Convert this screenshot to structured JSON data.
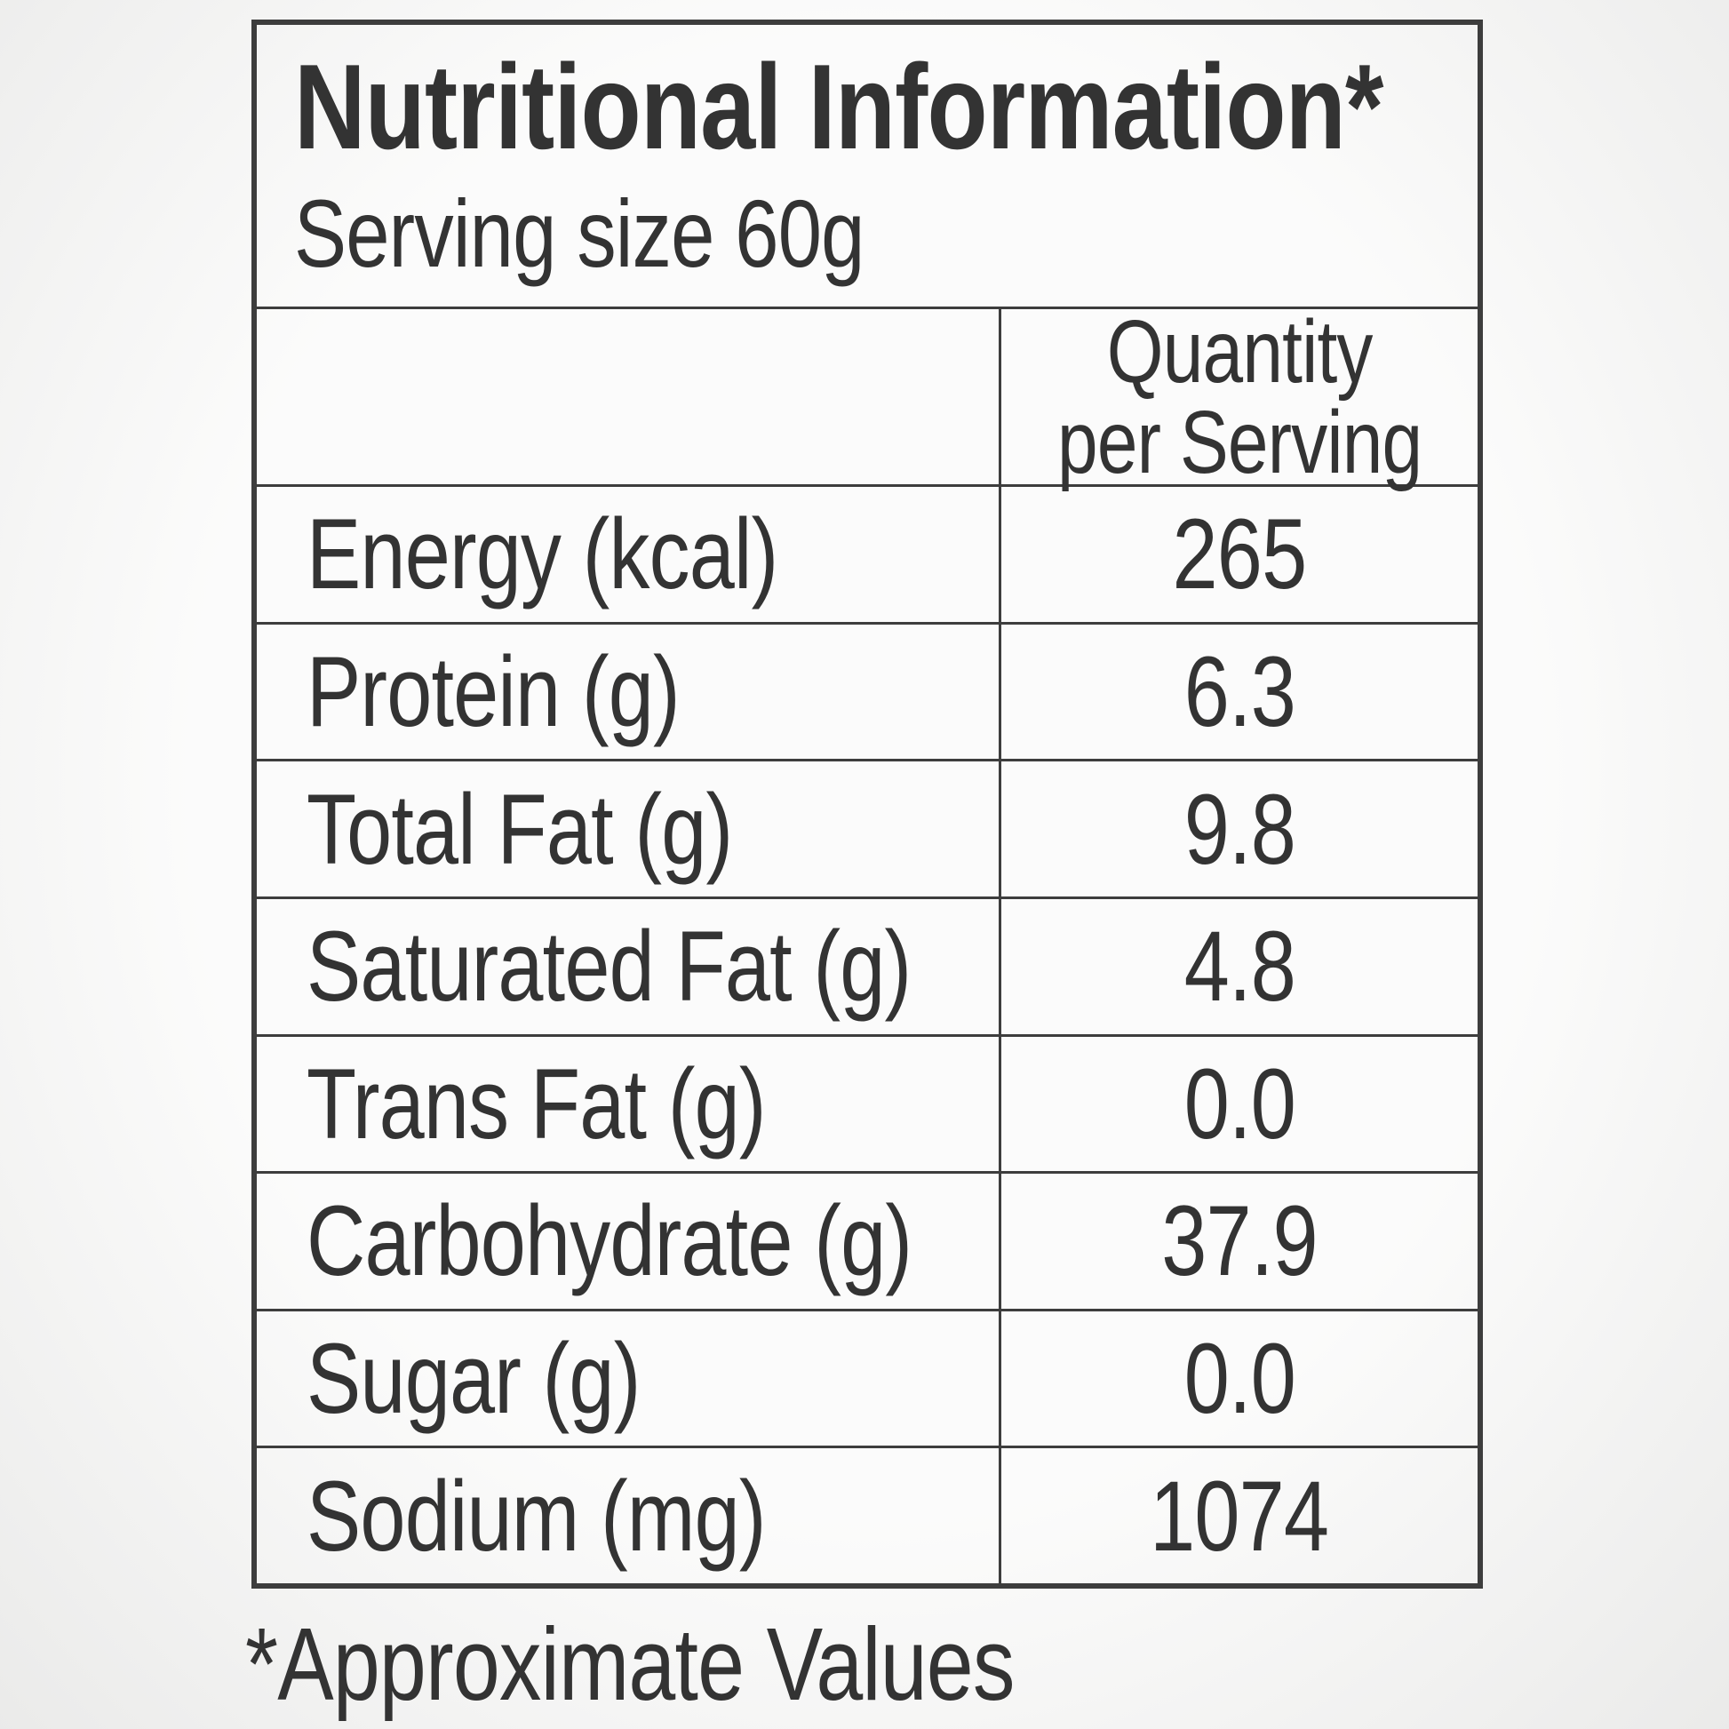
{
  "title": "Nutritional Information*",
  "serving_size": "Serving size 60g",
  "table": {
    "column_header": {
      "line1": "Quantity",
      "line2": "per Serving"
    },
    "rows": [
      {
        "label": "Energy (kcal)",
        "value": "265"
      },
      {
        "label": "Protein (g)",
        "value": "6.3"
      },
      {
        "label": "Total Fat (g)",
        "value": "9.8"
      },
      {
        "label": "Saturated Fat (g)",
        "value": "4.8"
      },
      {
        "label": "Trans Fat (g)",
        "value": "0.0"
      },
      {
        "label": "Carbohydrate (g)",
        "value": "37.9"
      },
      {
        "label": "Sugar (g)",
        "value": "0.0"
      },
      {
        "label": "Sodium (mg)",
        "value": "1074"
      }
    ]
  },
  "footnote": "*Approximate Values",
  "colors": {
    "text": "#333333",
    "border": "#3d3d3d",
    "background": "#f7f7f6"
  }
}
